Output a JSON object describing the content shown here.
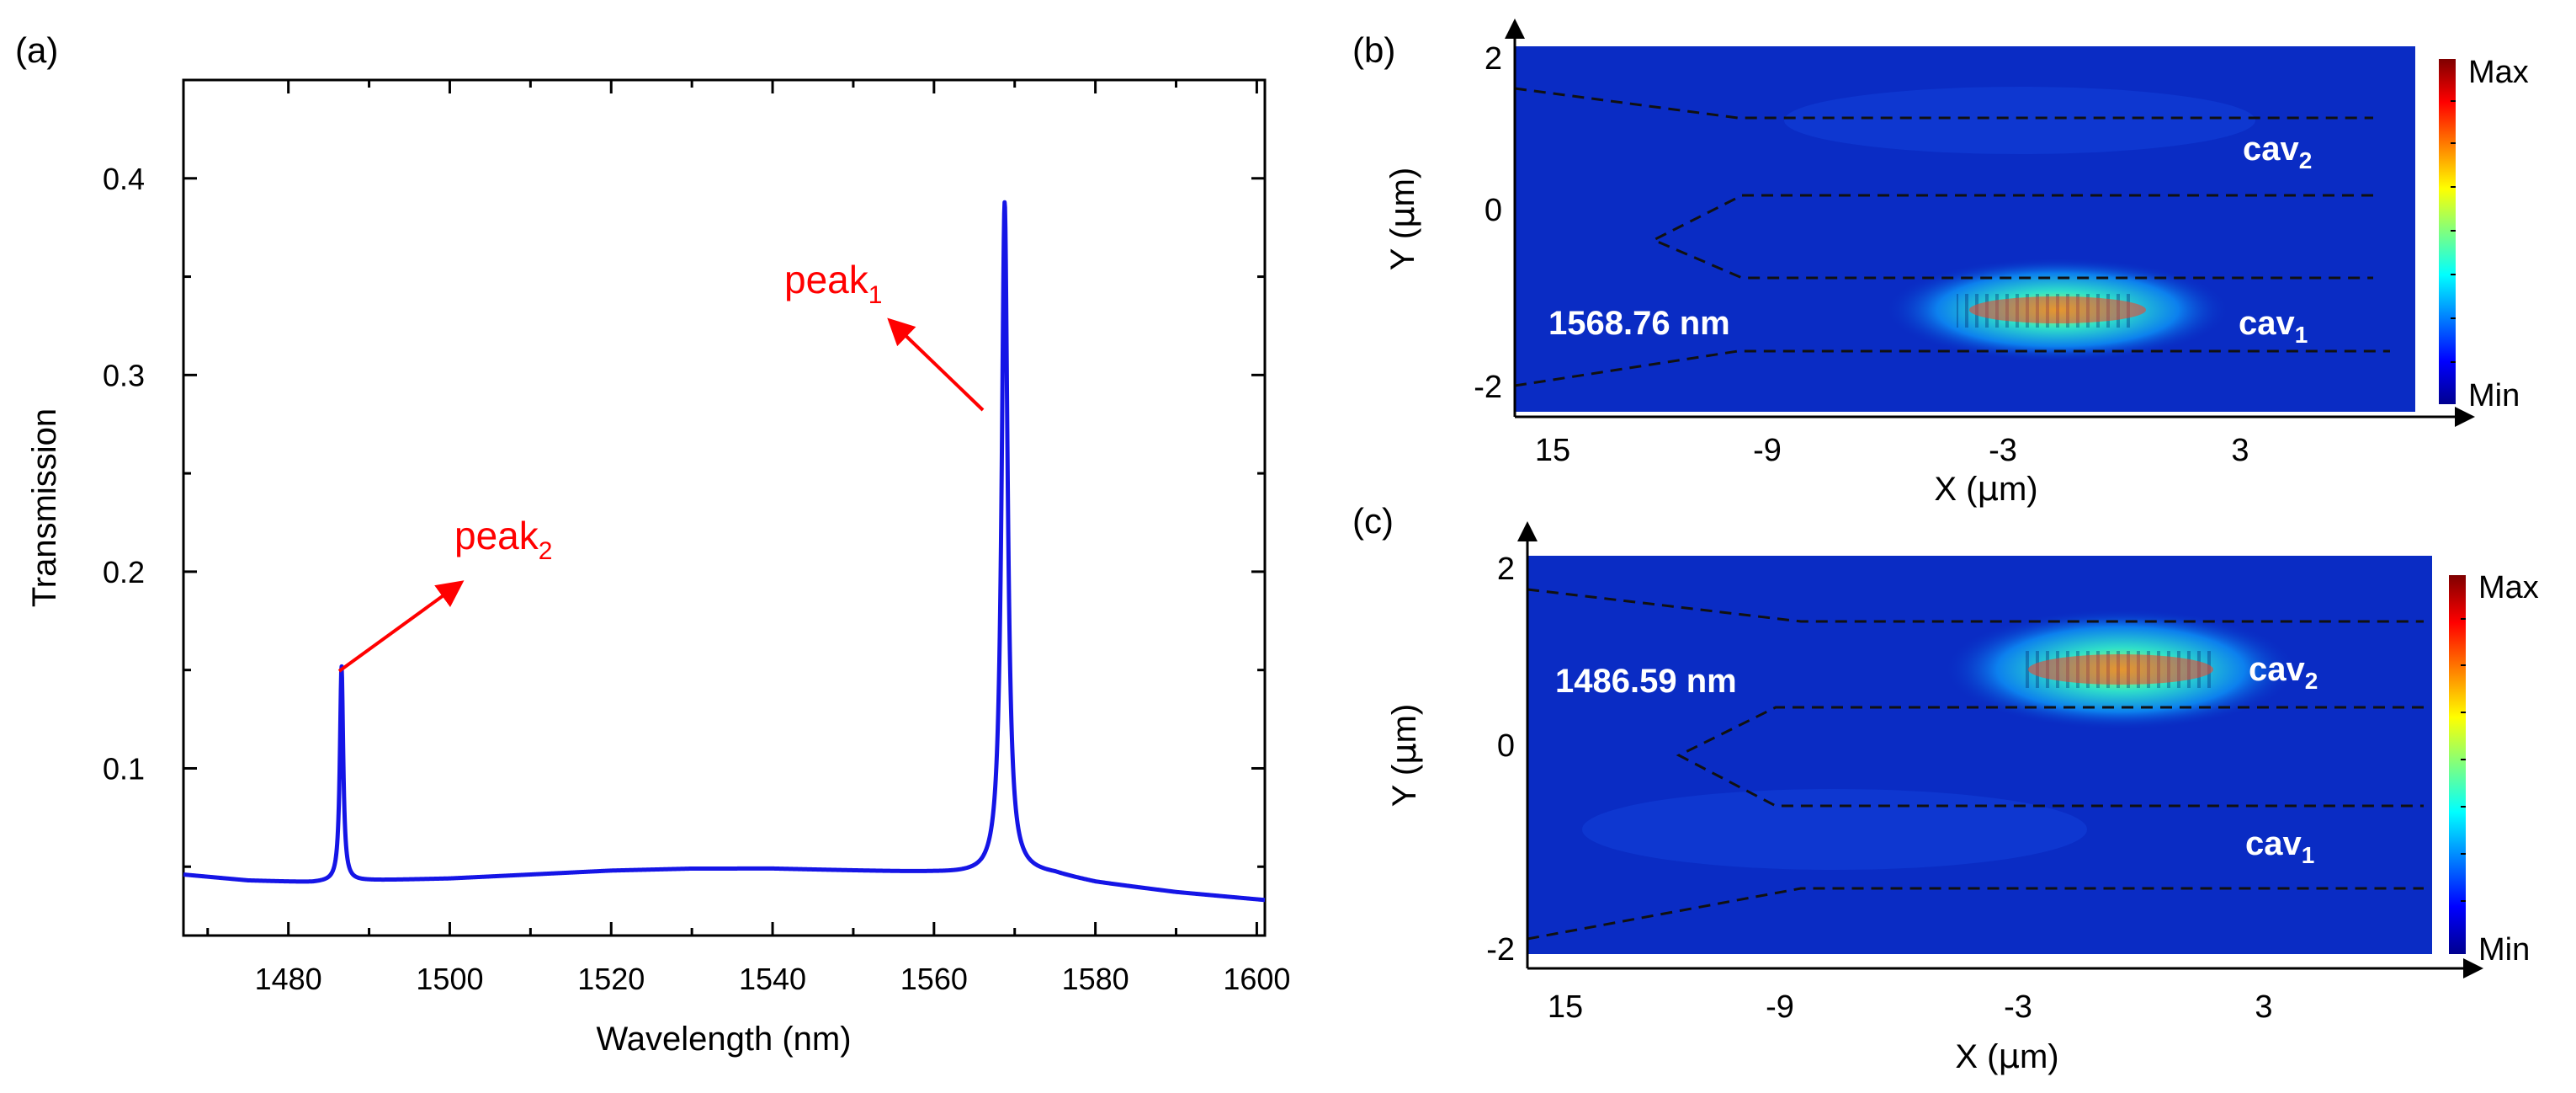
{
  "panels": {
    "a": {
      "label": "(a)",
      "chart_data": {
        "type": "line",
        "xlabel": "Wavelength (nm)",
        "ylabel": "Transmission",
        "xlim": [
          1467,
          1601
        ],
        "ylim": [
          0.015,
          0.45
        ],
        "xticks": [
          1480,
          1500,
          1520,
          1540,
          1560,
          1580,
          1600
        ],
        "yticks": [
          0.1,
          0.2,
          0.3,
          0.4
        ],
        "color": "#1515e6",
        "baseline": {
          "x": [
            1467,
            1475,
            1483,
            1490,
            1500,
            1510,
            1520,
            1530,
            1540,
            1550,
            1560,
            1566,
            1571,
            1575,
            1580,
            1590,
            1601
          ],
          "y": [
            0.046,
            0.043,
            0.042,
            0.043,
            0.044,
            0.046,
            0.048,
            0.049,
            0.049,
            0.048,
            0.047,
            0.046,
            0.047,
            0.046,
            0.042,
            0.037,
            0.033
          ]
        },
        "peaks": [
          {
            "name": "peak2",
            "x": 1486.59,
            "y": 0.152,
            "width": 0.25
          },
          {
            "name": "peak1",
            "x": 1568.76,
            "y": 0.388,
            "width": 0.45
          }
        ],
        "annotations": [
          {
            "id": "peak1",
            "base": "peak",
            "sub": "1",
            "color": "#ff0000"
          },
          {
            "id": "peak2",
            "base": "peak",
            "sub": "2",
            "color": "#ff0000"
          }
        ]
      }
    },
    "b": {
      "label": "(b)",
      "chart_data": {
        "type": "heatmap",
        "wavelength_label": "1568.76 nm",
        "xlabel_prefix": "X (",
        "xlabel_mu": "μ",
        "xlabel_suffix": "m)",
        "ylabel_prefix": "Y (",
        "ylabel_mu": "μ",
        "ylabel_suffix": "m)",
        "xtick_labels": [
          "15",
          "-9",
          "-3",
          "3"
        ],
        "ytick_labels": [
          "2",
          "0",
          "-2"
        ],
        "colorbar": {
          "max_label": "Max",
          "min_label": "Min"
        },
        "cavity_labels": [
          {
            "id": "cav2",
            "base": "cav",
            "sub": "2"
          },
          {
            "id": "cav1",
            "base": "cav",
            "sub": "1"
          }
        ],
        "hotspot": "cav1",
        "background_color": "#0a2cc4"
      }
    },
    "c": {
      "label": "(c)",
      "chart_data": {
        "type": "heatmap",
        "wavelength_label": "1486.59 nm",
        "xlabel_prefix": "X (",
        "xlabel_mu": "μ",
        "xlabel_suffix": "m)",
        "ylabel_prefix": "Y (",
        "ylabel_mu": "μ",
        "ylabel_suffix": "m)",
        "xtick_labels": [
          "15",
          "-9",
          "-3",
          "3"
        ],
        "ytick_labels": [
          "2",
          "0",
          "-2"
        ],
        "colorbar": {
          "max_label": "Max",
          "min_label": "Min"
        },
        "cavity_labels": [
          {
            "id": "cav2",
            "base": "cav",
            "sub": "2"
          },
          {
            "id": "cav1",
            "base": "cav",
            "sub": "1"
          }
        ],
        "hotspot": "cav2",
        "background_color": "#0a2cc4"
      }
    }
  }
}
